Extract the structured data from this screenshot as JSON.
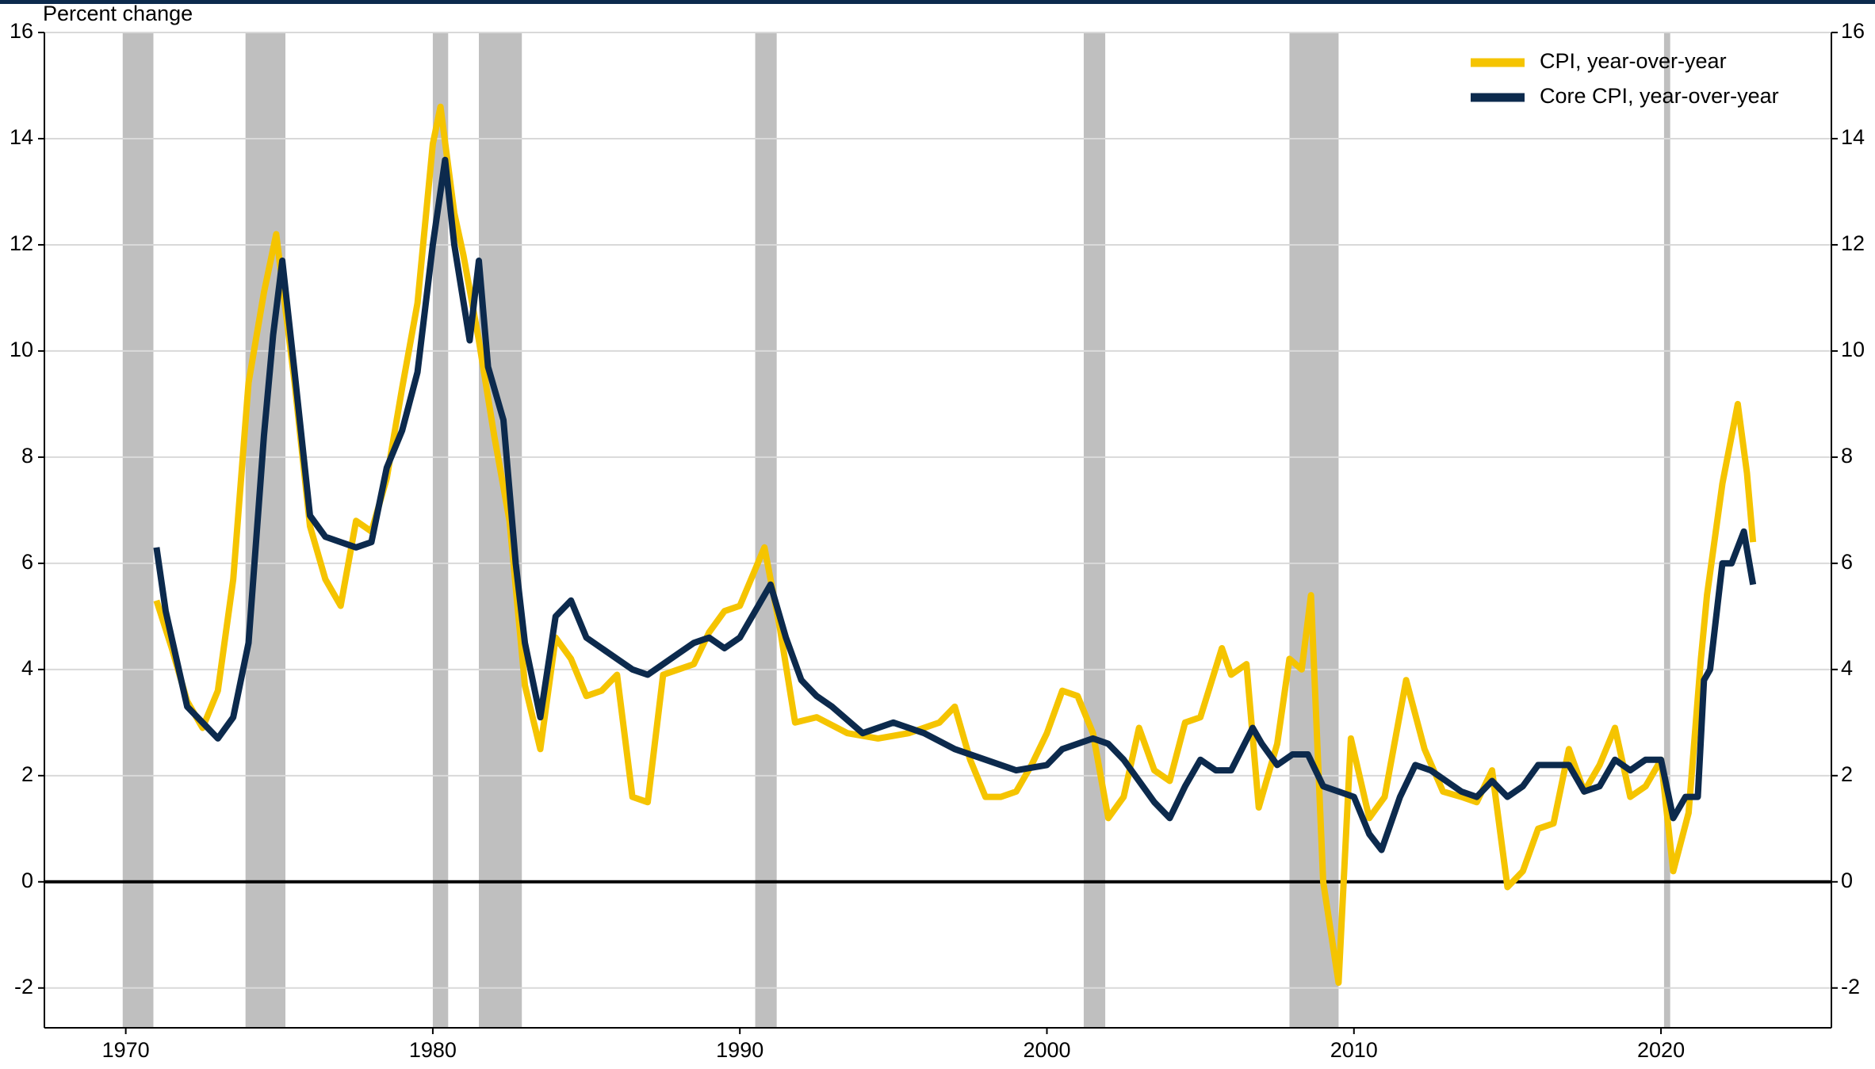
{
  "chart_data": {
    "type": "line",
    "y_label": "Percent change",
    "xlim": [
      1967.35,
      2025.55
    ],
    "ylim": [
      -2.75,
      16
    ],
    "xticks": [
      1970,
      1980,
      1990,
      2000,
      2010,
      2020
    ],
    "yticks": [
      -2,
      0,
      2,
      4,
      6,
      8,
      10,
      12,
      14,
      16
    ],
    "y2lim": [
      -2.75,
      16
    ],
    "y2ticks": [
      -2,
      0,
      2,
      4,
      6,
      8,
      10,
      12,
      14,
      16
    ],
    "grid": true,
    "legend": "upper right",
    "recession_color": "#bfbfbf",
    "recessions": [
      [
        1969.9,
        1970.9
      ],
      [
        1973.9,
        1975.2
      ],
      [
        1980.0,
        1980.5
      ],
      [
        1981.5,
        1982.9
      ],
      [
        1990.5,
        1991.2
      ],
      [
        2001.2,
        2001.9
      ],
      [
        2007.9,
        2009.5
      ],
      [
        2020.1,
        2020.3
      ]
    ],
    "series": [
      {
        "name": "CPI, year-over-year",
        "color": "#f5c400",
        "x": [
          1971.0,
          1971.5,
          1972.0,
          1972.5,
          1973.0,
          1973.5,
          1974.0,
          1974.5,
          1974.9,
          1975.5,
          1976.0,
          1976.5,
          1977.0,
          1977.5,
          1978.0,
          1978.5,
          1979.0,
          1979.5,
          1980.0,
          1980.25,
          1980.7,
          1981.0,
          1981.5,
          1982.0,
          1982.5,
          1983.0,
          1983.5,
          1984.0,
          1984.5,
          1985.0,
          1985.5,
          1986.0,
          1986.5,
          1987.0,
          1987.5,
          1988.0,
          1988.5,
          1989.0,
          1989.5,
          1990.0,
          1990.8,
          1991.3,
          1991.8,
          1992.5,
          1993.5,
          1994.5,
          1995.5,
          1996.5,
          1997.0,
          1997.5,
          1998.0,
          1998.5,
          1999.0,
          1999.5,
          2000.0,
          2000.5,
          2001.0,
          2001.5,
          2002.0,
          2002.5,
          2003.0,
          2003.5,
          2004.0,
          2004.5,
          2005.0,
          2005.7,
          2006.0,
          2006.5,
          2006.9,
          2007.5,
          2007.9,
          2008.3,
          2008.6,
          2009.0,
          2009.5,
          2009.9,
          2010.5,
          2011.0,
          2011.7,
          2012.3,
          2012.9,
          2013.5,
          2014.0,
          2014.5,
          2015.0,
          2015.5,
          2016.0,
          2016.5,
          2017.0,
          2017.5,
          2018.0,
          2018.5,
          2019.0,
          2019.5,
          2020.0,
          2020.4,
          2020.9,
          2021.3,
          2021.5,
          2022.0,
          2022.5,
          2022.8,
          2023.0
        ],
        "values": [
          5.3,
          4.4,
          3.4,
          2.9,
          3.6,
          5.7,
          9.4,
          11.1,
          12.2,
          9.4,
          6.7,
          5.7,
          5.2,
          6.8,
          6.6,
          7.6,
          9.3,
          10.9,
          13.9,
          14.6,
          12.6,
          11.8,
          10.2,
          8.4,
          6.8,
          3.7,
          2.5,
          4.6,
          4.2,
          3.5,
          3.6,
          3.9,
          1.6,
          1.5,
          3.9,
          4.0,
          4.1,
          4.7,
          5.1,
          5.2,
          6.3,
          4.8,
          3.0,
          3.1,
          2.8,
          2.7,
          2.8,
          3.0,
          3.3,
          2.3,
          1.6,
          1.6,
          1.7,
          2.2,
          2.8,
          3.6,
          3.5,
          2.8,
          1.2,
          1.6,
          2.9,
          2.1,
          1.9,
          3.0,
          3.1,
          4.4,
          3.9,
          4.1,
          1.4,
          2.6,
          4.2,
          4.0,
          5.4,
          0.0,
          -1.9,
          2.7,
          1.2,
          1.6,
          3.8,
          2.5,
          1.7,
          1.6,
          1.5,
          2.1,
          -0.1,
          0.2,
          1.0,
          1.1,
          2.5,
          1.7,
          2.2,
          2.9,
          1.6,
          1.8,
          2.3,
          0.2,
          1.3,
          4.2,
          5.4,
          7.5,
          9.0,
          7.7,
          6.4
        ]
      },
      {
        "name": "Core CPI, year-over-year",
        "color": "#0c2a4d",
        "x": [
          1971.0,
          1971.3,
          1972.0,
          1972.5,
          1973.0,
          1973.5,
          1974.0,
          1974.5,
          1974.8,
          1975.1,
          1975.5,
          1976.0,
          1976.5,
          1977.0,
          1977.5,
          1978.0,
          1978.5,
          1979.0,
          1979.5,
          1980.0,
          1980.4,
          1980.7,
          1981.2,
          1981.5,
          1981.8,
          1982.3,
          1982.7,
          1983.0,
          1983.5,
          1984.0,
          1984.5,
          1985.0,
          1985.5,
          1986.0,
          1986.5,
          1987.0,
          1987.5,
          1988.0,
          1988.5,
          1989.0,
          1989.5,
          1990.0,
          1990.7,
          1991.0,
          1991.5,
          1992.0,
          1992.5,
          1993.0,
          1994.0,
          1995.0,
          1996.0,
          1997.0,
          1998.0,
          1999.0,
          2000.0,
          2000.5,
          2001.5,
          2002.0,
          2002.5,
          2003.0,
          2003.5,
          2004.0,
          2004.5,
          2005.0,
          2005.5,
          2006.0,
          2006.7,
          2007.0,
          2007.5,
          2008.0,
          2008.5,
          2009.0,
          2009.5,
          2010.0,
          2010.5,
          2010.9,
          2011.5,
          2012.0,
          2012.5,
          2013.0,
          2013.5,
          2014.0,
          2014.5,
          2015.0,
          2015.5,
          2016.0,
          2016.5,
          2017.0,
          2017.5,
          2018.0,
          2018.5,
          2019.0,
          2019.5,
          2020.0,
          2020.4,
          2020.8,
          2021.2,
          2021.4,
          2021.6,
          2022.0,
          2022.3,
          2022.7,
          2023.0
        ],
        "values": [
          6.3,
          5.1,
          3.3,
          3.0,
          2.7,
          3.1,
          4.5,
          8.4,
          10.3,
          11.7,
          9.6,
          6.9,
          6.5,
          6.4,
          6.3,
          6.4,
          7.8,
          8.5,
          9.6,
          12.0,
          13.6,
          12.0,
          10.2,
          11.7,
          9.7,
          8.7,
          6.0,
          4.5,
          3.1,
          5.0,
          5.3,
          4.6,
          4.4,
          4.2,
          4.0,
          3.9,
          4.1,
          4.3,
          4.5,
          4.6,
          4.4,
          4.6,
          5.3,
          5.6,
          4.6,
          3.8,
          3.5,
          3.3,
          2.8,
          3.0,
          2.8,
          2.5,
          2.3,
          2.1,
          2.2,
          2.5,
          2.7,
          2.6,
          2.3,
          1.9,
          1.5,
          1.2,
          1.8,
          2.3,
          2.1,
          2.1,
          2.9,
          2.6,
          2.2,
          2.4,
          2.4,
          1.8,
          1.7,
          1.6,
          0.9,
          0.6,
          1.6,
          2.2,
          2.1,
          1.9,
          1.7,
          1.6,
          1.9,
          1.6,
          1.8,
          2.2,
          2.2,
          2.2,
          1.7,
          1.8,
          2.3,
          2.1,
          2.3,
          2.3,
          1.2,
          1.6,
          1.6,
          3.8,
          4.0,
          6.0,
          6.0,
          6.6,
          5.6
        ]
      }
    ]
  }
}
